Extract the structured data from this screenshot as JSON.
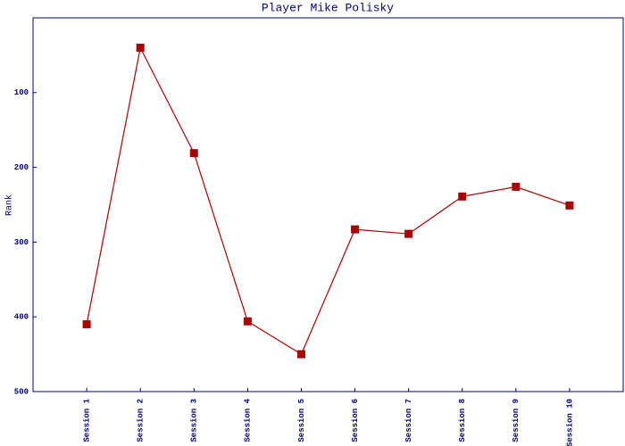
{
  "chart_data": {
    "type": "line",
    "title": "Player Mike Polisky",
    "y_label": "Rank",
    "categories": [
      "Session 1",
      "Session 2",
      "Session 3",
      "Session 4",
      "Session 5",
      "Session 6",
      "Session 7",
      "Session 8",
      "Session 9",
      "Session 10"
    ],
    "series": [
      {
        "name": "Rank",
        "color": "#aa0000",
        "values": [
          410,
          40,
          181,
          406,
          450,
          283,
          289,
          239,
          226,
          251
        ]
      }
    ],
    "ylim": [
      500,
      0
    ],
    "yticks": [
      100,
      200,
      300,
      400,
      500
    ],
    "grid": false
  }
}
